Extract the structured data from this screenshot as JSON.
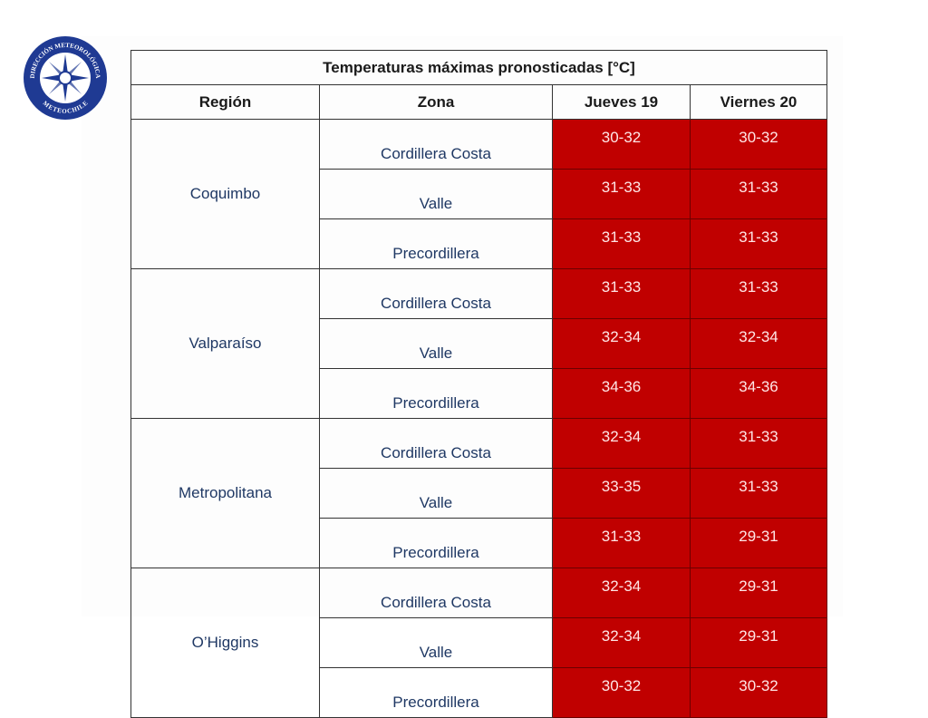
{
  "logo": {
    "top_text": "DIRECCIÓN METEOROLÓGICA",
    "bottom_text": "METEOCHILE"
  },
  "table": {
    "title": "Temperaturas máximas pronosticadas [°C]",
    "headers": [
      "Región",
      "Zona",
      "Jueves 19",
      "Viernes 20"
    ],
    "regions": [
      {
        "name": "Coquimbo",
        "zones": [
          {
            "zone": "Cordillera Costa",
            "values": [
              "30-32",
              "30-32"
            ]
          },
          {
            "zone": "Valle",
            "values": [
              "31-33",
              "31-33"
            ]
          },
          {
            "zone": "Precordillera",
            "values": [
              "31-33",
              "31-33"
            ]
          }
        ]
      },
      {
        "name": "Valparaíso",
        "zones": [
          {
            "zone": "Cordillera Costa",
            "values": [
              "31-33",
              "31-33"
            ]
          },
          {
            "zone": "Valle",
            "values": [
              "32-34",
              "32-34"
            ]
          },
          {
            "zone": "Precordillera",
            "values": [
              "34-36",
              "34-36"
            ]
          }
        ]
      },
      {
        "name": "Metropolitana",
        "zones": [
          {
            "zone": "Cordillera Costa",
            "values": [
              "32-34",
              "31-33"
            ]
          },
          {
            "zone": "Valle",
            "values": [
              "33-35",
              "31-33"
            ]
          },
          {
            "zone": "Precordillera",
            "values": [
              "31-33",
              "29-31"
            ]
          }
        ]
      },
      {
        "name": "O’Higgins",
        "zones": [
          {
            "zone": "Cordillera Costa",
            "values": [
              "32-34",
              "29-31"
            ]
          },
          {
            "zone": "Valle",
            "values": [
              "32-34",
              "29-31"
            ]
          },
          {
            "zone": "Precordillera",
            "values": [
              "30-32",
              "30-32"
            ]
          }
        ]
      }
    ]
  }
}
